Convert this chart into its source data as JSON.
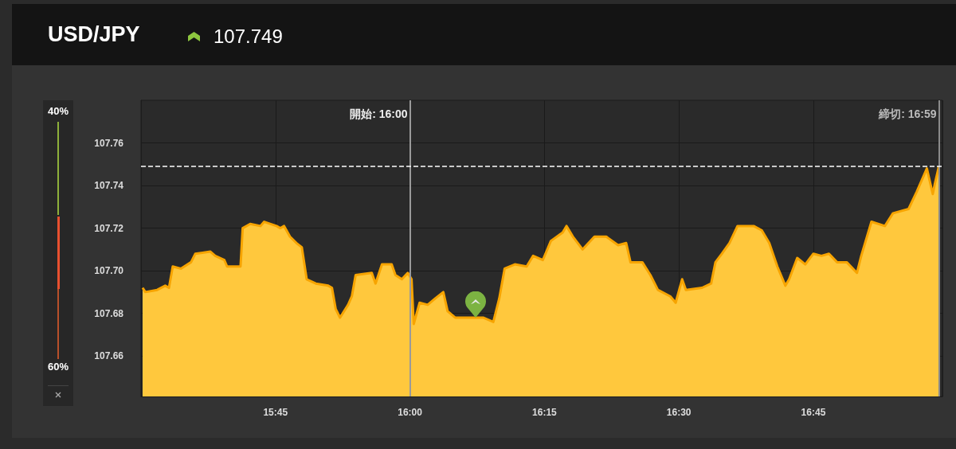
{
  "chart_data": {
    "type": "area",
    "title": "USD/JPY",
    "subtitle": "107.749",
    "annotations": [
      "40%",
      "60%",
      "締切: 16:59"
    ],
    "xlim": [
      15.5,
      16.99
    ],
    "xticks": [
      {
        "value": 15.75,
        "label": "15:45"
      },
      {
        "value": 16,
        "label": "16:00"
      },
      {
        "value": 16.25,
        "label": "16:15"
      },
      {
        "value": 16.5,
        "label": "16:30"
      },
      {
        "value": 16.75,
        "label": "16:45"
      }
    ],
    "ylim": [
      107.641,
      107.78
    ],
    "yticks": [
      {
        "value": 107.66,
        "label": "107.66"
      },
      {
        "value": 107.68,
        "label": "107.68"
      },
      {
        "value": 107.7,
        "label": "107.70"
      },
      {
        "value": 107.72,
        "label": "107.72"
      },
      {
        "value": 107.74,
        "label": "107.74"
      },
      {
        "value": 107.76,
        "label": "107.76"
      }
    ],
    "grid": true,
    "marker": "none",
    "line_style": "solid",
    "ref_lines": [
      {
        "axis": "x",
        "value": 16,
        "label": "開始: 16:00",
        "color": "#9a9a9a",
        "line_style": "solid"
      },
      {
        "axis": "x",
        "value": 16.98333,
        "label": null,
        "color": "#8a8a8a",
        "line_style": "solid"
      },
      {
        "axis": "y",
        "value": 107.749,
        "label": null,
        "color": "#ffffff",
        "line_style": "dashed"
      }
    ],
    "series": [
      {
        "color": "#ffc83d",
        "x": [
          15.503,
          15.508,
          15.53,
          15.545,
          15.552,
          15.559,
          15.574,
          15.593,
          15.601,
          15.629,
          15.638,
          15.655,
          15.66,
          15.685,
          15.689,
          15.703,
          15.722,
          15.729,
          15.752,
          15.759,
          15.766,
          15.777,
          15.789,
          15.799,
          15.808,
          15.825,
          15.848,
          15.855,
          15.862,
          15.87,
          15.885,
          15.892,
          15.899,
          15.929,
          15.936,
          15.948,
          15.966,
          15.973,
          15.985,
          15.996,
          16.003,
          16.007,
          16.018,
          16.033,
          16.047,
          16.062,
          16.07,
          16.084,
          16.114,
          16.136,
          16.155,
          16.166,
          16.176,
          16.195,
          16.217,
          16.229,
          16.247,
          16.262,
          16.284,
          16.291,
          16.303,
          16.321,
          16.343,
          16.365,
          16.387,
          16.402,
          16.41,
          16.432,
          16.447,
          16.461,
          16.484,
          16.494,
          16.506,
          16.513,
          16.543,
          16.56,
          16.568,
          16.58,
          16.594,
          16.609,
          16.639,
          16.654,
          16.668,
          16.683,
          16.698,
          16.705,
          16.72,
          16.735,
          16.75,
          16.765,
          16.779,
          16.794,
          16.812,
          16.831,
          16.839,
          16.858,
          16.883,
          16.898,
          16.927,
          16.942,
          16.961,
          16.972,
          16.976,
          16.98333
        ],
        "values": [
          107.692,
          107.69,
          107.691,
          107.693,
          107.692,
          107.702,
          107.701,
          107.704,
          107.708,
          107.709,
          107.707,
          107.705,
          107.702,
          107.702,
          107.72,
          107.722,
          107.721,
          107.723,
          107.721,
          107.72,
          107.721,
          107.716,
          107.713,
          107.711,
          107.696,
          107.694,
          107.693,
          107.692,
          107.682,
          107.678,
          107.684,
          107.688,
          107.698,
          107.699,
          107.694,
          107.703,
          107.703,
          107.698,
          107.696,
          107.699,
          107.696,
          107.675,
          107.685,
          107.684,
          107.687,
          107.69,
          107.681,
          107.678,
          107.678,
          107.678,
          107.676,
          107.687,
          107.701,
          107.703,
          107.702,
          107.707,
          107.705,
          107.714,
          107.718,
          107.721,
          107.716,
          107.71,
          107.716,
          107.716,
          107.712,
          107.713,
          107.704,
          107.704,
          107.698,
          107.691,
          107.688,
          107.685,
          107.696,
          107.691,
          107.692,
          107.694,
          107.704,
          107.708,
          107.713,
          107.721,
          107.721,
          107.719,
          107.713,
          107.702,
          107.693,
          107.696,
          107.706,
          107.703,
          107.708,
          107.707,
          107.708,
          107.704,
          107.704,
          107.699,
          107.707,
          107.723,
          107.721,
          107.727,
          107.729,
          107.737,
          107.748,
          107.736,
          107.741,
          107.749
        ]
      }
    ]
  }
}
